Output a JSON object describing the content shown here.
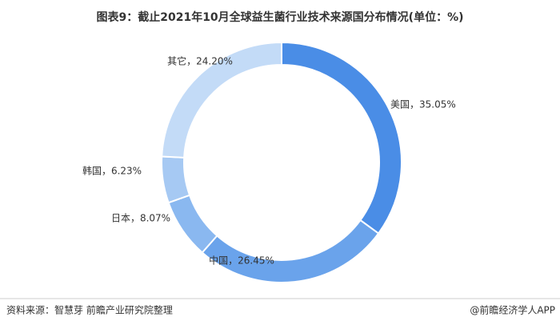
{
  "chart_data": {
    "type": "pie",
    "title": "图表9：截止2021年10月全球益生菌行业技术来源国分布情况(单位：%)",
    "values": [
      35.05,
      26.45,
      8.07,
      6.23,
      24.2
    ],
    "value_labels": [
      "美国，35.05%",
      "中国，26.45%",
      "日本，8.07%",
      "韩国，6.23%",
      "其它，24.20%"
    ],
    "colors": [
      "#4a8de6",
      "#6aa3eb",
      "#8ab8f0",
      "#a6c9f3",
      "#c3dbf7"
    ],
    "source": "资料来源：智慧芽 前瞻产业研究院整理",
    "credit": "@前瞻经济学人APP"
  }
}
